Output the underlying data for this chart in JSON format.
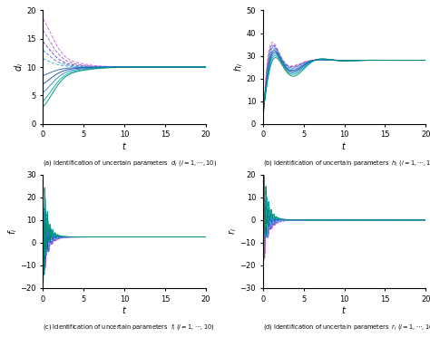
{
  "xlim": [
    0,
    20
  ],
  "n_curves": 10,
  "subplot_a": {
    "ylabel": "$d_i$",
    "xlabel": "$t$",
    "ylim": [
      0,
      20
    ],
    "yticks": [
      0,
      5,
      10,
      15,
      20
    ],
    "final_value": 10.0,
    "caption": "(a) Identification of uncertain parameters  $d_i$ ($i=1,\\cdots,10$)"
  },
  "subplot_b": {
    "ylabel": "$h_i$",
    "xlabel": "$t$",
    "ylim": [
      0,
      50
    ],
    "yticks": [
      0,
      10,
      20,
      30,
      40,
      50
    ],
    "final_value": 28.0,
    "caption": "(b) Identification of uncertain parameters  $h_i$ ($i=1,\\cdots,10$)"
  },
  "subplot_c": {
    "ylabel": "$f_i$",
    "xlabel": "$t$",
    "ylim": [
      -20,
      30
    ],
    "yticks": [
      -20,
      -10,
      0,
      10,
      20,
      30
    ],
    "final_value": 2.5,
    "caption": "(c) Identification of uncertain parameters  $f_i$ ($i=1,\\cdots,10$)"
  },
  "subplot_d": {
    "ylabel": "$r_i$",
    "xlabel": "$t$",
    "ylim": [
      -30,
      20
    ],
    "yticks": [
      -30,
      -20,
      -10,
      0,
      10,
      20
    ],
    "final_value": 0.0,
    "caption": "(d) Identification of uncertain parameters  $r_i$ ($i=1,\\cdots,10$)"
  },
  "xticks": [
    0,
    5,
    10,
    15,
    20
  ],
  "colors_solid": [
    "#3333cc",
    "#4466ff",
    "#0088ff",
    "#00aadd",
    "#00bbaa",
    "#009944",
    "#66aa00",
    "#aa8800",
    "#cc4400",
    "#cc0088"
  ],
  "colors_dash": [
    "#cc44cc",
    "#cc66ff",
    "#8844ff",
    "#0044cc",
    "#0077aa",
    "#005533",
    "#3388aa",
    "#886600",
    "#993300",
    "#990055"
  ]
}
